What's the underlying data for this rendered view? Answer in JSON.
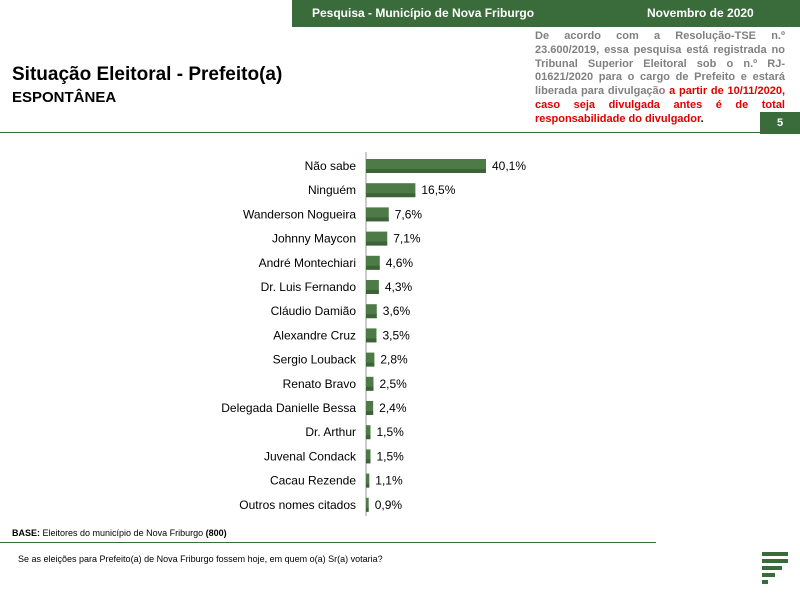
{
  "header": {
    "survey": "Pesquisa - Município de Nova Friburgo",
    "date": "Novembro de 2020",
    "page_number": "5"
  },
  "disclaimer": {
    "part1": "De acordo com a Resolução-TSE n.º 23.600/2019, essa pesquisa está registrada no Tribunal Superior Eleitoral sob o n.º RJ-01621/2020  para o cargo de Prefeito e estará liberada para divulgação ",
    "part2": "a partir de 10/11/2020, caso seja divulgada antes é de total ",
    "part3": "responsabilidade do divulgador",
    "part4": "."
  },
  "title": "Situação Eleitoral - Prefeito(a)",
  "subtitle": "ESPONTÂNEA",
  "footer": {
    "base_label": "BASE:",
    "base_text": " Eleitores do município de Nova Friburgo ",
    "base_count": "(800)",
    "question": "Se as eleições para Prefeito(a) de Nova Friburgo fossem hoje, em quem o(a) Sr(a) votaria?"
  },
  "colors": {
    "brand": "#3a6b3a",
    "bar": "#4e7a47",
    "alert": "#e00000"
  },
  "chart_data": {
    "type": "bar",
    "orientation": "horizontal",
    "categories": [
      "Não sabe",
      "Ninguém",
      "Wanderson Nogueira",
      "Johnny Maycon",
      "André Montechiari",
      "Dr. Luis Fernando",
      "Cláudio Damião",
      "Alexandre Cruz",
      "Sergio Louback",
      "Renato Bravo",
      "Delegada Danielle Bessa",
      "Dr. Arthur",
      "Juvenal Condack",
      "Cacau Rezende",
      "Outros nomes citados"
    ],
    "values": [
      40.1,
      16.5,
      7.6,
      7.1,
      4.6,
      4.3,
      3.6,
      3.5,
      2.8,
      2.5,
      2.4,
      1.5,
      1.5,
      1.1,
      0.9
    ],
    "labels": [
      "40,1%",
      "16,5%",
      "7,6%",
      "7,1%",
      "4,6%",
      "4,3%",
      "3,6%",
      "3,5%",
      "2,8%",
      "2,5%",
      "2,4%",
      "1,5%",
      "1,5%",
      "1,1%",
      "0,9%"
    ],
    "legend": "none",
    "grid": false
  }
}
